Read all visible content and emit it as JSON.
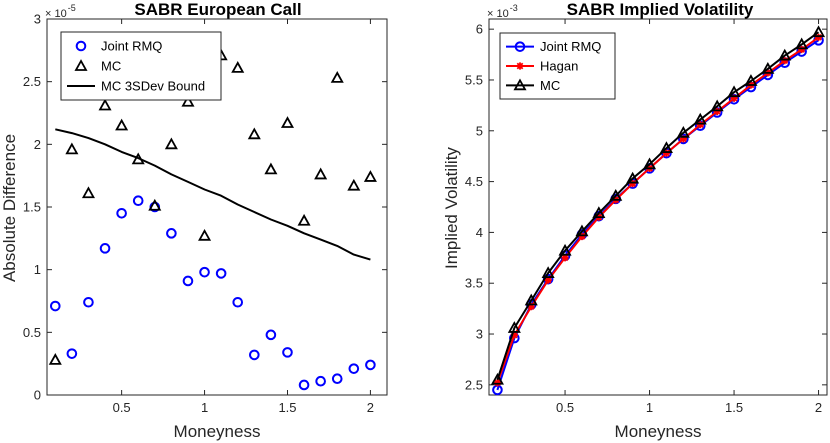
{
  "chart_data": [
    {
      "type": "scatter",
      "title": "SABR European Call",
      "xlabel": "Moneyness",
      "ylabel": "Absolute Difference",
      "y_exponent_label": "× 10",
      "y_exponent_power": "-5",
      "xlim": [
        0.05,
        2.1
      ],
      "ylim": [
        0,
        3
      ],
      "xticks": [
        0.5,
        1,
        1.5,
        2
      ],
      "xtick_labels": [
        "0.5",
        "1",
        "1.5",
        "2"
      ],
      "yticks": [
        0,
        0.5,
        1,
        1.5,
        2,
        2.5,
        3
      ],
      "ytick_labels": [
        "0",
        "0.5",
        "1",
        "1.5",
        "2",
        "2.5",
        "3"
      ],
      "legend_position": "top-left",
      "x": [
        0.1,
        0.2,
        0.3,
        0.4,
        0.5,
        0.6,
        0.7,
        0.8,
        0.9,
        1.0,
        1.1,
        1.2,
        1.3,
        1.4,
        1.5,
        1.6,
        1.7,
        1.8,
        1.9,
        2.0
      ],
      "series": [
        {
          "name": "Joint RMQ",
          "marker": "circle",
          "color": "#0000ff",
          "values": [
            0.71,
            0.33,
            0.74,
            1.17,
            1.45,
            1.55,
            1.5,
            1.29,
            0.91,
            0.98,
            0.97,
            0.74,
            0.32,
            0.48,
            0.34,
            0.08,
            0.11,
            0.13,
            0.21,
            0.24
          ]
        },
        {
          "name": "MC",
          "marker": "triangle",
          "color": "#000000",
          "values": [
            0.28,
            1.96,
            1.61,
            2.31,
            2.15,
            1.88,
            1.51,
            2.0,
            2.34,
            1.27,
            2.71,
            2.61,
            2.08,
            1.8,
            2.17,
            1.39,
            1.76,
            2.53,
            1.67,
            1.74
          ]
        },
        {
          "name": "MC 3SDev Bound",
          "marker": "line",
          "color": "#000000",
          "values": [
            2.12,
            2.09,
            2.05,
            2.0,
            1.94,
            1.89,
            1.83,
            1.76,
            1.7,
            1.64,
            1.59,
            1.52,
            1.46,
            1.4,
            1.35,
            1.29,
            1.24,
            1.19,
            1.12,
            1.08
          ]
        }
      ]
    },
    {
      "type": "line",
      "title": "SABR Implied Volatility",
      "xlabel": "Moneyness",
      "ylabel": "Implied Volatility",
      "y_exponent_label": "× 10",
      "y_exponent_power": "-3",
      "xlim": [
        0.05,
        2.05
      ],
      "ylim": [
        2.4,
        6.1
      ],
      "xticks": [
        0.5,
        1,
        1.5,
        2
      ],
      "xtick_labels": [
        "0.5",
        "1",
        "1.5",
        "2"
      ],
      "yticks": [
        2.5,
        3,
        3.5,
        4,
        4.5,
        5,
        5.5,
        6
      ],
      "ytick_labels": [
        "2.5",
        "3",
        "3.5",
        "4",
        "4.5",
        "5",
        "5.5",
        "6"
      ],
      "legend_position": "top-left",
      "x": [
        0.1,
        0.2,
        0.3,
        0.4,
        0.5,
        0.6,
        0.7,
        0.8,
        0.9,
        1.0,
        1.1,
        1.2,
        1.3,
        1.4,
        1.5,
        1.6,
        1.7,
        1.8,
        1.9,
        2.0
      ],
      "series": [
        {
          "name": "Joint RMQ",
          "marker": "circle",
          "color": "#0000ff",
          "values": [
            2.45,
            2.96,
            3.29,
            3.54,
            3.77,
            3.98,
            4.16,
            4.33,
            4.48,
            4.63,
            4.78,
            4.92,
            5.05,
            5.18,
            5.31,
            5.43,
            5.55,
            5.67,
            5.78,
            5.89
          ]
        },
        {
          "name": "Hagan",
          "marker": "star",
          "color": "#ff0000",
          "values": [
            2.52,
            2.99,
            3.27,
            3.53,
            3.75,
            3.96,
            4.15,
            4.32,
            4.48,
            4.63,
            4.78,
            4.92,
            5.06,
            5.19,
            5.32,
            5.45,
            5.57,
            5.69,
            5.8,
            5.92
          ]
        },
        {
          "name": "MC",
          "marker": "triangle",
          "color": "#000000",
          "values": [
            2.55,
            3.06,
            3.33,
            3.6,
            3.82,
            4.01,
            4.19,
            4.36,
            4.53,
            4.67,
            4.83,
            4.98,
            5.11,
            5.24,
            5.38,
            5.49,
            5.61,
            5.74,
            5.85,
            5.97
          ]
        }
      ]
    }
  ]
}
